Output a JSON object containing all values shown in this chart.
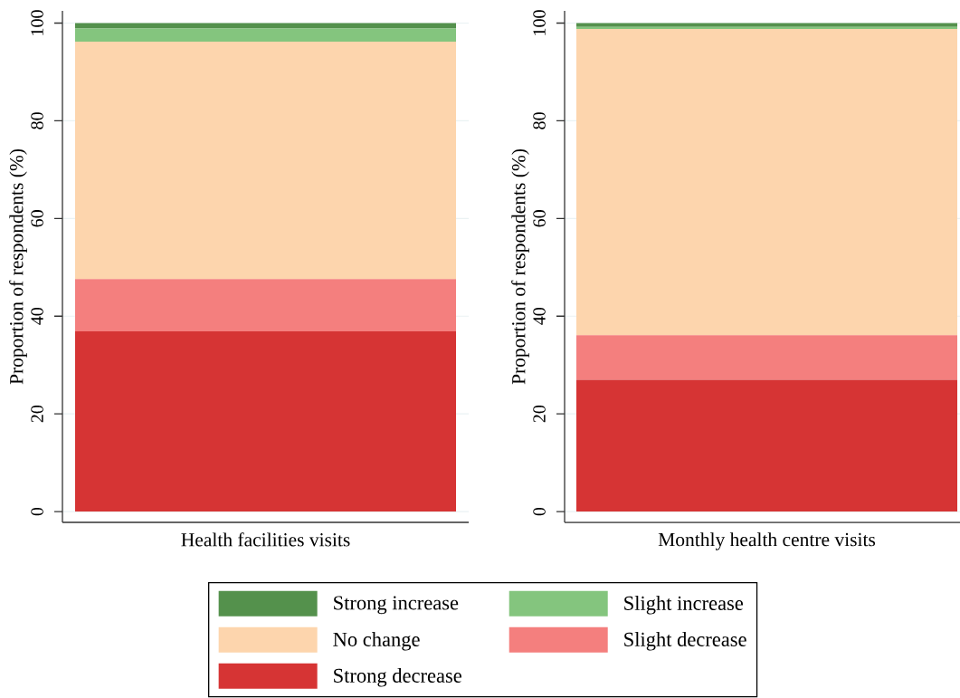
{
  "chart_data": [
    {
      "type": "bar",
      "stacked": true,
      "categories": [
        "Health facilities visits"
      ],
      "ylabel": "Proportion of respondents (%)",
      "ylim": [
        -2.2,
        102.5
      ],
      "yticks": [
        0,
        20,
        40,
        60,
        80,
        100
      ],
      "grid": "y",
      "legend": "bottom",
      "series": [
        {
          "name": "Strong decrease",
          "color": "#d63434",
          "values": [
            36.9
          ]
        },
        {
          "name": "Slight decrease",
          "color": "#f47f7e",
          "values": [
            10.7
          ]
        },
        {
          "name": "No change",
          "color": "#fdd5ad",
          "values": [
            48.6
          ]
        },
        {
          "name": "Slight increase",
          "color": "#84c57e",
          "values": [
            2.7
          ]
        },
        {
          "name": "Strong increase",
          "color": "#54914c",
          "values": [
            1.1
          ]
        }
      ]
    },
    {
      "type": "bar",
      "stacked": true,
      "categories": [
        "Monthly health centre visits"
      ],
      "ylabel": "Proportion of respondents (%)",
      "ylim": [
        -2.2,
        102.5
      ],
      "yticks": [
        0,
        20,
        40,
        60,
        80,
        100
      ],
      "grid": "y",
      "series": [
        {
          "color": "#d63434",
          "values": [
            27.0
          ]
        },
        {
          "color": "#f47f7e",
          "values": [
            9.1
          ]
        },
        {
          "color": "#fdd5ad",
          "values": [
            62.7
          ]
        },
        {
          "color": "#84c57e",
          "values": [
            0.4
          ]
        },
        {
          "color": "#54914c",
          "values": [
            0.8
          ]
        }
      ]
    }
  ]
}
